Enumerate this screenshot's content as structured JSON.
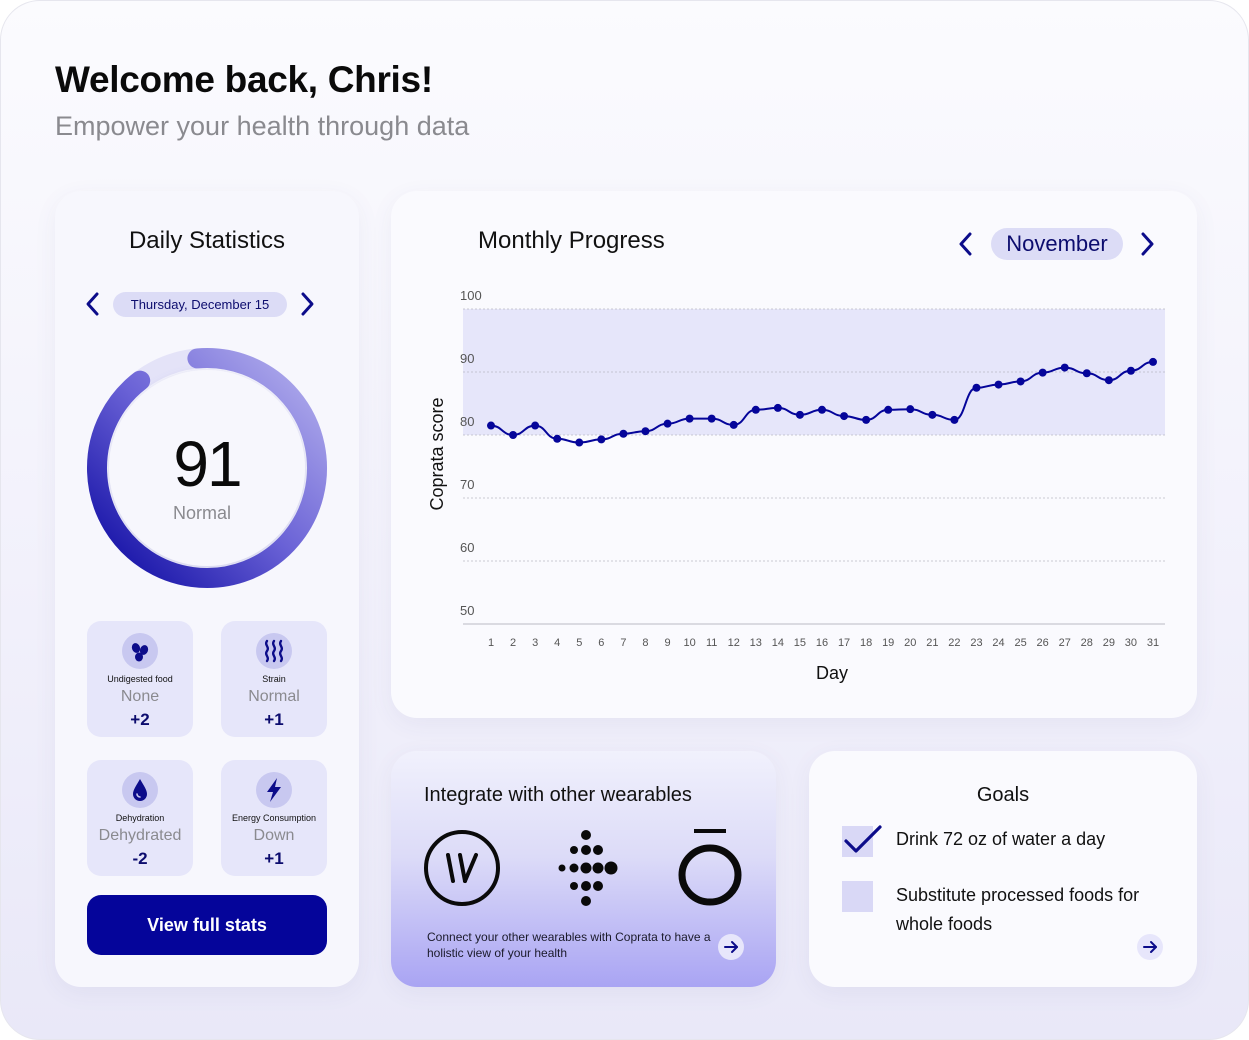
{
  "header": {
    "title": "Welcome back, Chris!",
    "subtitle": "Empower your health through data"
  },
  "daily": {
    "title": "Daily Statistics",
    "date": "Thursday, December 15",
    "score": "91",
    "score_fraction": 0.91,
    "score_label": "Normal",
    "stats": [
      {
        "name": "Undigested food",
        "status": "None",
        "delta": "+2",
        "icon": "seeds-icon"
      },
      {
        "name": "Strain",
        "status": "Normal",
        "delta": "+1",
        "icon": "steam-icon"
      },
      {
        "name": "Dehydration",
        "status": "Dehydrated",
        "delta": "-2",
        "icon": "water-drop-icon"
      },
      {
        "name": "Energy Consumption",
        "status": "Down",
        "delta": "+1",
        "icon": "lightning-icon"
      }
    ],
    "button_label": "View full stats"
  },
  "monthly": {
    "title": "Monthly Progress",
    "month": "November"
  },
  "chart_data": {
    "type": "line",
    "title": "",
    "xlabel": "Day",
    "ylabel": "Coprata score",
    "ylim": [
      50,
      100
    ],
    "yticks": [
      50,
      60,
      70,
      80,
      90,
      100
    ],
    "normal_band": [
      80,
      100
    ],
    "grid": true,
    "x": [
      1,
      2,
      3,
      4,
      5,
      6,
      7,
      8,
      9,
      10,
      11,
      12,
      13,
      14,
      15,
      16,
      17,
      18,
      19,
      20,
      21,
      22,
      23,
      24,
      25,
      26,
      27,
      28,
      29,
      30,
      31
    ],
    "series": [
      {
        "values": [
          81.5,
          80.0,
          81.5,
          79.4,
          78.8,
          79.3,
          80.2,
          80.6,
          81.8,
          82.6,
          82.6,
          81.6,
          84.0,
          84.3,
          83.2,
          84.0,
          83.0,
          82.4,
          84.0,
          84.1,
          83.2,
          82.4,
          87.5,
          88.0,
          88.5,
          89.9,
          90.7,
          89.8,
          88.7,
          90.2,
          91.6
        ]
      }
    ],
    "colors": {
      "line": "#05059a",
      "band": "#e6e6fa"
    }
  },
  "integrate": {
    "title": "Integrate with other wearables",
    "text": "Connect your other wearables with Coprata to have a holistic view of your health",
    "brands": [
      "whoop-logo",
      "fitbit-logo",
      "oura-logo"
    ]
  },
  "goals": {
    "title": "Goals",
    "items": [
      {
        "text": "Drink 72 oz of water a day",
        "checked": true
      },
      {
        "text": "Substitute processed foods for whole foods",
        "checked": false
      }
    ]
  }
}
